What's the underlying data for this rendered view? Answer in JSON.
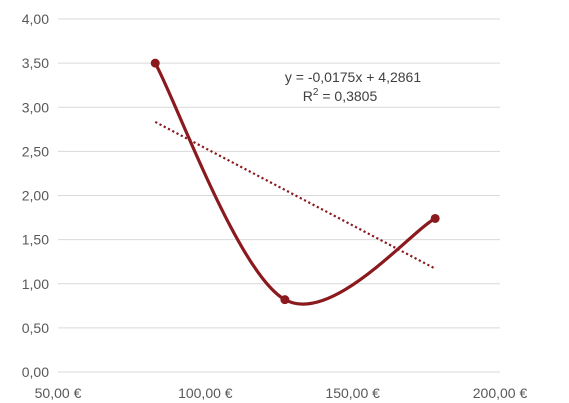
{
  "chart_data": {
    "type": "scatter",
    "title": "",
    "xlabel": "",
    "ylabel": "",
    "xlim": [
      50,
      200
    ],
    "ylim": [
      0,
      4
    ],
    "x_ticks": [
      "50,00 €",
      "100,00 €",
      "150,00 €",
      "200,00 €"
    ],
    "y_ticks": [
      "0,00",
      "0,50",
      "1,00",
      "1,50",
      "2,00",
      "2,50",
      "3,00",
      "3,50",
      "4,00"
    ],
    "series": [
      {
        "x": [
          83,
          127,
          178
        ],
        "y": [
          3.5,
          0.82,
          1.74
        ],
        "color": "#8B1A1F",
        "smoothed": true
      }
    ],
    "trendline": {
      "type": "linear",
      "slope": -0.0175,
      "intercept": 4.2861,
      "x_range": [
        83,
        178
      ],
      "color": "#8B1A1F",
      "style": "dotted",
      "equation": "y = -0,0175x + 4,2861",
      "r2_label": "R",
      "r2_sup": "2",
      "r2_value": " = 0,3805"
    },
    "grid": "horizontal",
    "legend": "none"
  }
}
